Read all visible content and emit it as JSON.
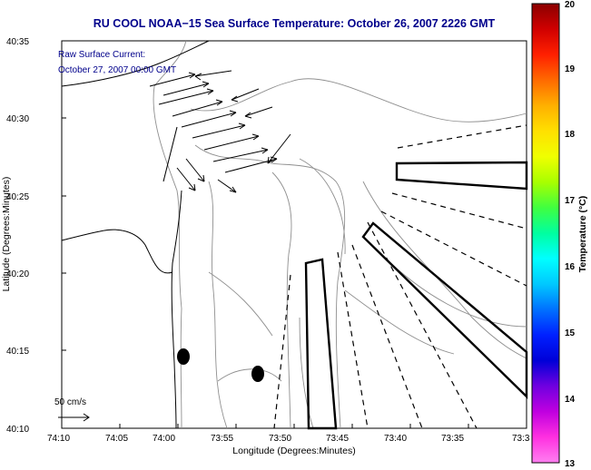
{
  "title": "RU COOL  NOAA−15  Sea Surface Temperature:  October 26, 2007 2226 GMT",
  "current_label_line1": "Raw Surface Current:",
  "current_label_line2": "October 27, 2007 00:00 GMT",
  "scale_label": "50 cm/s",
  "map": {
    "xlabel": "Longitude (Degrees:Minutes)",
    "ylabel": "Latitude (Degrees:Minutes)",
    "x_ticks": [
      "74:10",
      "74:05",
      "74:00",
      "73:55",
      "73:50",
      "73:45",
      "73:40",
      "73:35",
      "73:3"
    ],
    "y_ticks": [
      "40:35",
      "40:30",
      "40:25",
      "40:20",
      "40:15",
      "40:10"
    ]
  },
  "colorbar": {
    "label": "Temperature (°C)",
    "ticks": [
      "20",
      "19",
      "18",
      "17",
      "16",
      "15",
      "14",
      "13"
    ],
    "colors": [
      "#8b0000",
      "#d00000",
      "#ff2000",
      "#ff6a00",
      "#ffb000",
      "#ffe000",
      "#f0ff00",
      "#a8ff00",
      "#40ff40",
      "#00ffa0",
      "#00ffff",
      "#00c8ff",
      "#0070ff",
      "#0020ff",
      "#0000d8",
      "#7000e0",
      "#c000e0",
      "#ff30e0",
      "#ff80f0"
    ]
  }
}
